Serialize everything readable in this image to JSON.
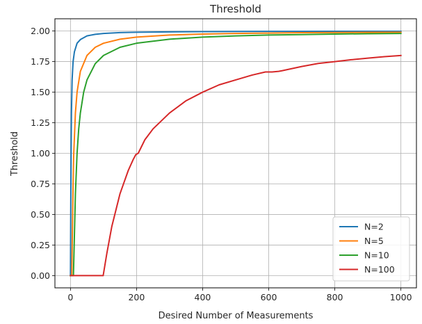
{
  "chart_data": {
    "type": "line",
    "title": "Threshold",
    "xlabel": "Desired Number of Measurements",
    "ylabel": "Threshold",
    "xlim": [
      -47,
      1047
    ],
    "ylim": [
      -0.1,
      2.1
    ],
    "xticks": [
      0,
      200,
      400,
      600,
      800,
      1000
    ],
    "yticks": [
      0.0,
      0.25,
      0.5,
      0.75,
      1.0,
      1.25,
      1.5,
      1.75,
      2.0
    ],
    "grid": true,
    "legend_position": "lower-right",
    "series": [
      {
        "name": "N=2",
        "color": "#1f77b4",
        "x": [
          0,
          1,
          2,
          3,
          5,
          8,
          12,
          20,
          30,
          50,
          75,
          100,
          150,
          200,
          300,
          400,
          500,
          600,
          700,
          800,
          900,
          1000
        ],
        "y": [
          0.0,
          0.6,
          1.0,
          1.33,
          1.6,
          1.75,
          1.83,
          1.9,
          1.93,
          1.96,
          1.973,
          1.98,
          1.987,
          1.99,
          1.993,
          1.995,
          1.996,
          1.997,
          1.997,
          1.998,
          1.998,
          1.998
        ]
      },
      {
        "name": "N=5",
        "color": "#ff7f0e",
        "x": [
          0,
          2,
          4,
          6,
          8,
          10,
          15,
          20,
          30,
          50,
          75,
          100,
          150,
          200,
          300,
          400,
          500,
          600,
          700,
          800,
          900,
          1000
        ],
        "y": [
          0.0,
          0.0,
          0.0,
          0.4,
          0.75,
          1.0,
          1.33,
          1.5,
          1.67,
          1.8,
          1.867,
          1.9,
          1.933,
          1.95,
          1.967,
          1.975,
          1.98,
          1.983,
          1.986,
          1.988,
          1.989,
          1.99
        ]
      },
      {
        "name": "N=10",
        "color": "#2ca02c",
        "x": [
          0,
          5,
          9,
          12,
          15,
          20,
          25,
          30,
          40,
          50,
          75,
          100,
          150,
          200,
          300,
          400,
          500,
          600,
          700,
          800,
          900,
          1000
        ],
        "y": [
          0.0,
          0.0,
          0.0,
          0.33,
          0.67,
          1.0,
          1.2,
          1.33,
          1.5,
          1.6,
          1.733,
          1.8,
          1.867,
          1.9,
          1.933,
          1.95,
          1.96,
          1.967,
          1.971,
          1.975,
          1.978,
          1.98
        ]
      },
      {
        "name": "N=100",
        "color": "#d62728",
        "x": [
          0,
          50,
          99,
          110,
          125,
          150,
          175,
          190,
          198,
          205,
          225,
          250,
          300,
          350,
          400,
          450,
          500,
          550,
          590,
          610,
          630,
          640,
          700,
          750,
          800,
          850,
          900,
          950,
          1000
        ],
        "y": [
          0.0,
          0.0,
          0.0,
          0.18,
          0.4,
          0.67,
          0.86,
          0.95,
          0.99,
          1.0,
          1.11,
          1.2,
          1.33,
          1.43,
          1.5,
          1.56,
          1.6,
          1.64,
          1.665,
          1.665,
          1.67,
          1.675,
          1.71,
          1.735,
          1.75,
          1.765,
          1.778,
          1.79,
          1.8
        ]
      }
    ]
  }
}
